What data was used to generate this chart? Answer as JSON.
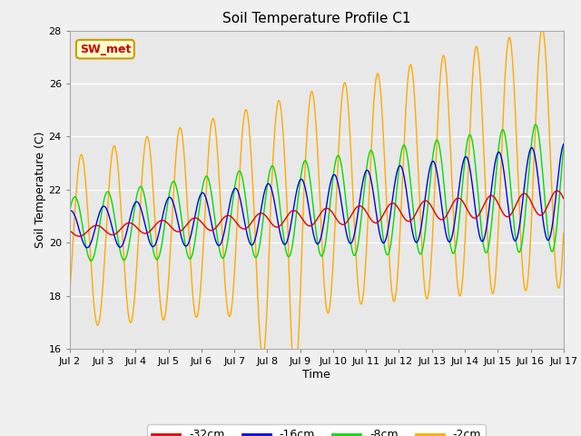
{
  "title": "Soil Temperature Profile C1",
  "xlabel": "Time",
  "ylabel": "Soil Temperature (C)",
  "ylim": [
    16,
    28
  ],
  "yticks": [
    16,
    18,
    20,
    22,
    24,
    26,
    28
  ],
  "xtick_labels": [
    "Jul 2",
    "Jul 3",
    "Jul 4",
    "Jul 5",
    "Jul 6",
    "Jul 7",
    "Jul 8",
    "Jul 9",
    "Jul 10",
    "Jul 11",
    "Jul 12",
    "Jul 13",
    "Jul 14",
    "Jul 15",
    "Jul 16",
    "Jul 17"
  ],
  "xtick_positions": [
    2,
    3,
    4,
    5,
    6,
    7,
    8,
    9,
    10,
    11,
    12,
    13,
    14,
    15,
    16,
    17
  ],
  "colors": {
    "32cm": "#dd0000",
    "16cm": "#0000ee",
    "8cm": "#00dd00",
    "2cm": "#ffaa00"
  },
  "legend_labels": [
    "-32cm",
    "-16cm",
    "-8cm",
    "-2cm"
  ],
  "legend_colors": [
    "#dd0000",
    "#0000ee",
    "#00dd00",
    "#ffaa00"
  ],
  "annotation_text": "SW_met",
  "annotation_color": "#cc0000",
  "annotation_bg": "#ffffcc",
  "annotation_border": "#cc9900",
  "plot_bg": "#e8e8e8",
  "fig_bg": "#f0f0f0"
}
